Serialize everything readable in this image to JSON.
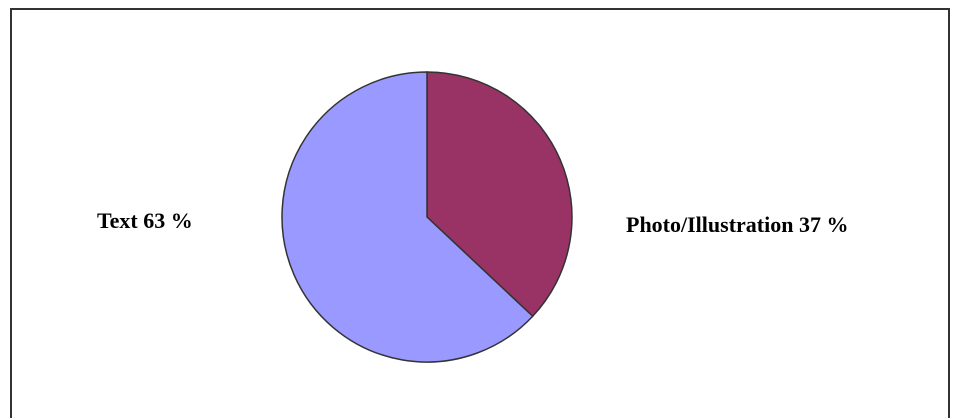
{
  "chart_data": {
    "type": "pie",
    "slices": [
      {
        "label": "Text 63 %",
        "value": 63,
        "color": "#9999ff"
      },
      {
        "label": "Photo/Illustration 37 %",
        "value": 37,
        "color": "#993366"
      }
    ],
    "title": "",
    "legend": "none"
  }
}
